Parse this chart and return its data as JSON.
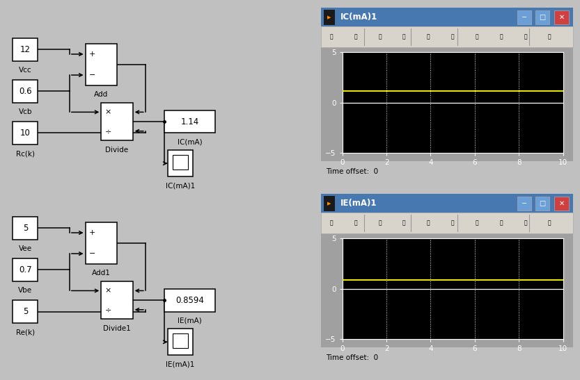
{
  "bg_color": "#c0c0c0",
  "simulink_bg": "#ffffff",
  "plot_bg": "#000000",
  "grid_color": "#ffffff",
  "signal_color": "#ffff00",
  "scope_top": {
    "title": "IC(mA)1",
    "ylim": [
      -5,
      5
    ],
    "xlim": [
      0,
      10
    ],
    "yticks": [
      -5,
      0,
      5
    ],
    "xticks": [
      0,
      2,
      4,
      6,
      8,
      10
    ],
    "signal_value": 1.14,
    "time_offset": "0"
  },
  "scope_bottom": {
    "title": "IE(mA)1",
    "ylim": [
      -5,
      5
    ],
    "xlim": [
      0,
      10
    ],
    "yticks": [
      -5,
      0,
      5
    ],
    "xticks": [
      0,
      2,
      4,
      6,
      8,
      10
    ],
    "signal_value": 0.8594,
    "time_offset": "0"
  },
  "top": {
    "vcc": "12",
    "vcc_lbl": "Vcc",
    "vcb": "0.6",
    "vcb_lbl": "Vcb",
    "rc": "10",
    "rc_lbl": "Rc(k)",
    "add_lbl": "Add",
    "div_lbl": "Divide",
    "disp_val": "1.14",
    "disp_lbl": "IC(mA)",
    "scope_lbl": "IC(mA)1"
  },
  "bottom": {
    "vee": "5",
    "vee_lbl": "Vee",
    "vbe": "0.7",
    "vbe_lbl": "Vbe",
    "re": "5",
    "re_lbl": "Re(k)",
    "add_lbl": "Add1",
    "div_lbl": "Divide1",
    "disp_val": "0.8594",
    "disp_lbl": "IE(mA)",
    "scope_lbl": "IE(mA)1"
  }
}
